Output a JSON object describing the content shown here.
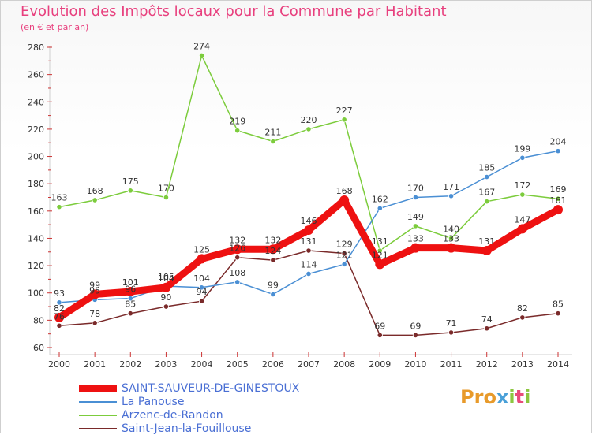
{
  "title": "Evolution des Impôts locaux pour la Commune par Habitant",
  "subtitle": "(en € et par an)",
  "logo": "Proxiti",
  "chart_data": {
    "type": "line",
    "title": "Evolution des Impôts locaux pour la Commune par Habitant",
    "subtitle": "(en € et par an)",
    "xlabel": "",
    "ylabel": "",
    "ylim": [
      60,
      280
    ],
    "yticks": [
      60,
      80,
      100,
      120,
      140,
      160,
      180,
      200,
      220,
      240,
      260,
      280
    ],
    "categories": [
      "2000",
      "2001",
      "2002",
      "2003",
      "2004",
      "2005",
      "2006",
      "2007",
      "2008",
      "2009",
      "2010",
      "2011",
      "2012",
      "2013",
      "2014"
    ],
    "grid": false,
    "legend_position": "bottom-left",
    "series": [
      {
        "name": "SAINT-SAUVEUR-DE-GINESTOUX",
        "color": "#ee1111",
        "values": [
          82,
          99,
          101,
          104,
          125,
          132,
          132,
          146,
          168,
          121,
          133,
          133,
          131,
          147,
          161
        ],
        "labels": [
          "82",
          "99",
          "101",
          "104",
          "125",
          "132",
          "132",
          "146",
          "168",
          "121",
          "133",
          "133",
          "131",
          "147",
          "161"
        ]
      },
      {
        "name": "La Panouse",
        "color": "#4a8fd4",
        "values": [
          93,
          95,
          96,
          105,
          104,
          108,
          99,
          114,
          121,
          162,
          170,
          171,
          185,
          199,
          204
        ],
        "labels": [
          "93",
          "95",
          "96",
          "105",
          "104",
          "108",
          "99",
          "114",
          "121",
          "162",
          "170",
          "171",
          "185",
          "199",
          "204"
        ]
      },
      {
        "name": "Arzenc-de-Randon",
        "color": "#7ccc3c",
        "values": [
          163,
          168,
          175,
          170,
          274,
          219,
          211,
          220,
          227,
          131,
          149,
          140,
          167,
          172,
          169
        ],
        "labels": [
          "163",
          "168",
          "175",
          "170",
          "274",
          "219",
          "211",
          "220",
          "227",
          "131",
          "149",
          "140",
          "167",
          "172",
          "169"
        ]
      },
      {
        "name": "Saint-Jean-la-Fouillouse",
        "color": "#7a2a2a",
        "values": [
          76,
          78,
          85,
          90,
          94,
          126,
          124,
          131,
          129,
          69,
          69,
          71,
          74,
          82,
          85
        ],
        "labels": [
          "76",
          "78",
          "85",
          "90",
          "94",
          "126",
          "124",
          "131",
          "129",
          "69",
          "69",
          "71",
          "74",
          "82",
          "85"
        ]
      }
    ]
  }
}
